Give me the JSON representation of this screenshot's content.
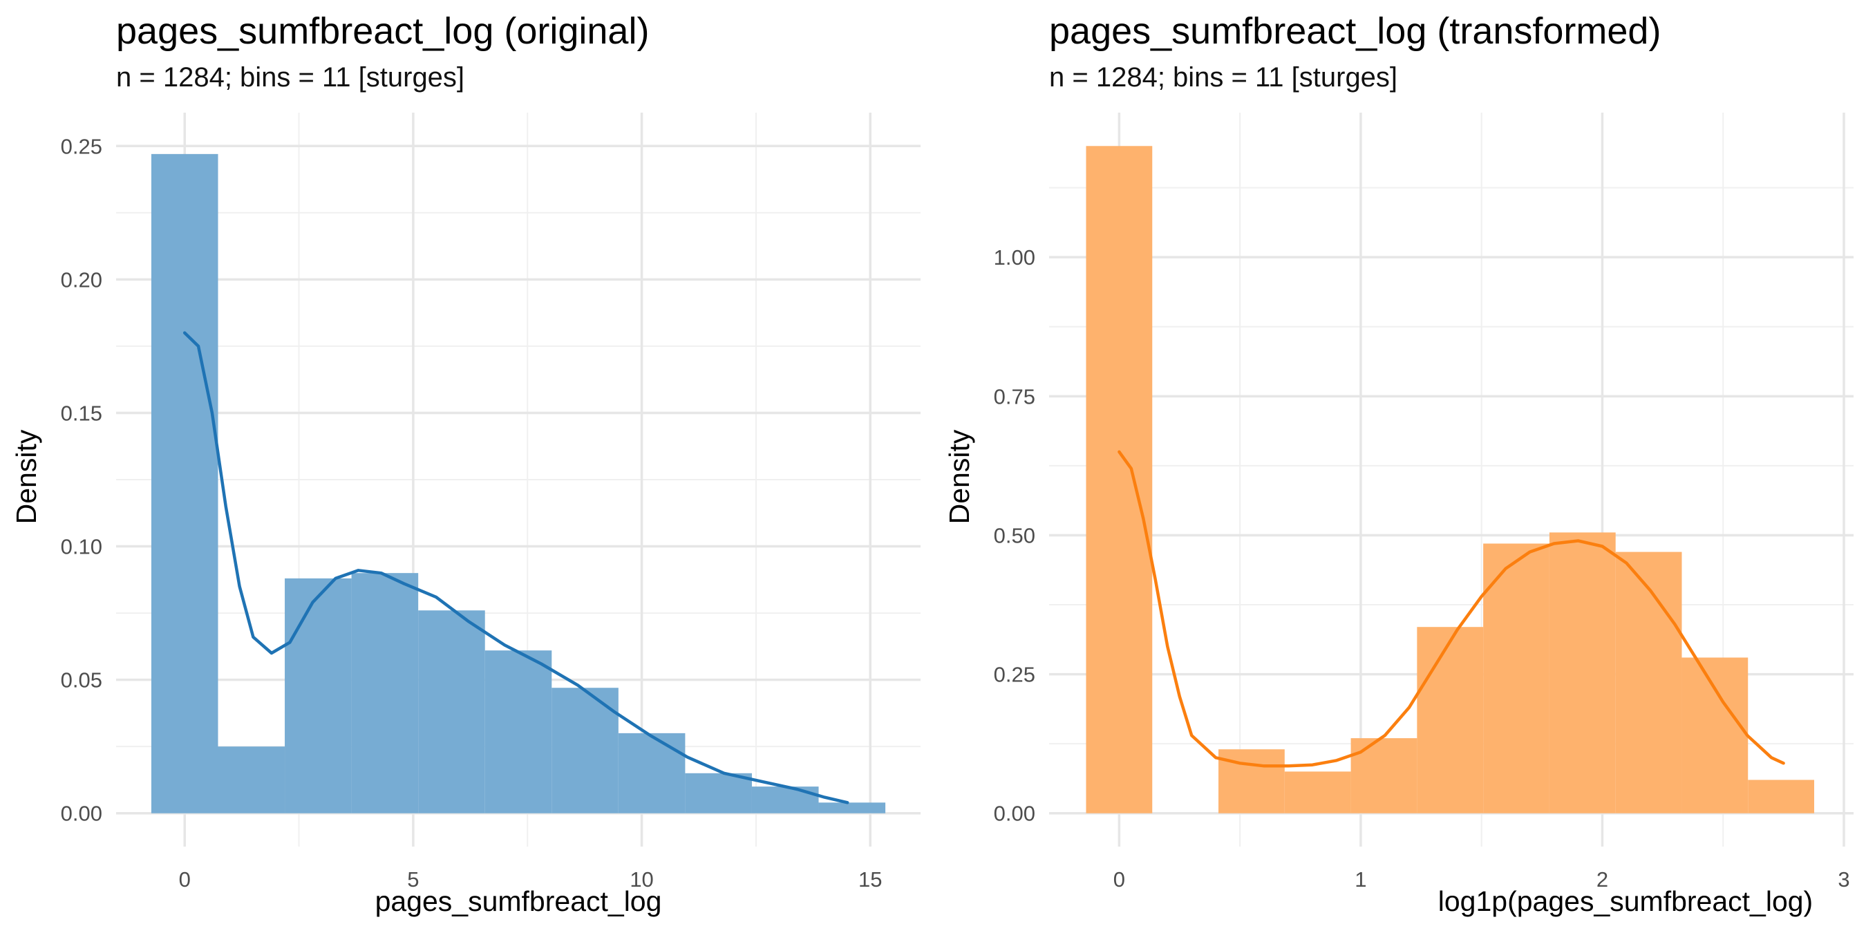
{
  "chart_data": [
    {
      "type": "bar",
      "title": "pages_sumfbreact_log (original)",
      "subtitle": "n = 1284; bins = 11 [sturges]",
      "xlabel": "pages_sumfbreact_log",
      "ylabel": "Density",
      "xlim": [
        -1.5,
        16.1
      ],
      "ylim": [
        -0.0125,
        0.2625
      ],
      "x_ticks": [
        0,
        5,
        10,
        15
      ],
      "x_tick_labels": [
        "0",
        "5",
        "10",
        "15"
      ],
      "y_ticks": [
        0,
        0.05,
        0.1,
        0.15,
        0.2,
        0.25
      ],
      "y_tick_labels": [
        "0.00",
        "0.05",
        "0.10",
        "0.15",
        "0.20",
        "0.25"
      ],
      "grid": true,
      "bar_color": "#77acd3",
      "line_color": "#1f73b4",
      "bins": [
        {
          "x0": -0.73,
          "x1": 0.73,
          "density": 0.247
        },
        {
          "x0": 0.73,
          "x1": 2.19,
          "density": 0.025
        },
        {
          "x0": 2.19,
          "x1": 3.65,
          "density": 0.088
        },
        {
          "x0": 3.65,
          "x1": 5.11,
          "density": 0.09
        },
        {
          "x0": 5.11,
          "x1": 6.57,
          "density": 0.076
        },
        {
          "x0": 6.57,
          "x1": 8.03,
          "density": 0.061
        },
        {
          "x0": 8.03,
          "x1": 9.49,
          "density": 0.047
        },
        {
          "x0": 9.49,
          "x1": 10.95,
          "density": 0.03
        },
        {
          "x0": 10.95,
          "x1": 12.41,
          "density": 0.015
        },
        {
          "x0": 12.41,
          "x1": 13.87,
          "density": 0.01
        },
        {
          "x0": 13.87,
          "x1": 15.33,
          "density": 0.004
        }
      ],
      "density_curve": {
        "x": [
          0,
          0.3,
          0.6,
          0.9,
          1.2,
          1.5,
          1.9,
          2.3,
          2.8,
          3.3,
          3.8,
          4.3,
          4.8,
          5.5,
          6.2,
          7.0,
          7.8,
          8.6,
          9.4,
          10.2,
          11.0,
          11.8,
          12.6,
          13.4,
          14.0,
          14.5
        ],
        "y": [
          0.18,
          0.175,
          0.15,
          0.115,
          0.085,
          0.066,
          0.06,
          0.064,
          0.079,
          0.088,
          0.091,
          0.09,
          0.086,
          0.081,
          0.072,
          0.063,
          0.056,
          0.048,
          0.038,
          0.029,
          0.021,
          0.015,
          0.012,
          0.009,
          0.006,
          0.004
        ]
      }
    },
    {
      "type": "bar",
      "title": "pages_sumfbreact_log (transformed)",
      "subtitle": "n = 1284; bins = 11 [sturges]",
      "xlabel": "log1p(pages_sumfbreact_log)",
      "ylabel": "Density",
      "xlim": [
        -0.29,
        3.04
      ],
      "ylim": [
        -0.06,
        1.26
      ],
      "x_ticks": [
        0,
        1,
        2,
        3
      ],
      "x_tick_labels": [
        "0",
        "1",
        "2",
        "3"
      ],
      "y_ticks": [
        0,
        0.25,
        0.5,
        0.75,
        1.0
      ],
      "y_tick_labels": [
        "0.00",
        "0.25",
        "0.50",
        "0.75",
        "1.00"
      ],
      "grid": true,
      "bar_color": "#feb26d",
      "line_color": "#fb7f0f",
      "bins": [
        {
          "x0": -0.137,
          "x1": 0.137,
          "density": 1.2
        },
        {
          "x0": 0.137,
          "x1": 0.411,
          "density": 0.0
        },
        {
          "x0": 0.411,
          "x1": 0.685,
          "density": 0.115
        },
        {
          "x0": 0.685,
          "x1": 0.959,
          "density": 0.075
        },
        {
          "x0": 0.959,
          "x1": 1.233,
          "density": 0.135
        },
        {
          "x0": 1.233,
          "x1": 1.507,
          "density": 0.335
        },
        {
          "x0": 1.507,
          "x1": 1.781,
          "density": 0.485
        },
        {
          "x0": 1.781,
          "x1": 2.055,
          "density": 0.505
        },
        {
          "x0": 2.055,
          "x1": 2.329,
          "density": 0.47
        },
        {
          "x0": 2.329,
          "x1": 2.603,
          "density": 0.28
        },
        {
          "x0": 2.603,
          "x1": 2.877,
          "density": 0.06
        }
      ],
      "density_curve": {
        "x": [
          0,
          0.05,
          0.1,
          0.15,
          0.2,
          0.25,
          0.3,
          0.4,
          0.5,
          0.6,
          0.7,
          0.8,
          0.9,
          1.0,
          1.1,
          1.2,
          1.3,
          1.4,
          1.5,
          1.6,
          1.7,
          1.8,
          1.9,
          2.0,
          2.1,
          2.2,
          2.3,
          2.4,
          2.5,
          2.6,
          2.7,
          2.75
        ],
        "y": [
          0.65,
          0.62,
          0.53,
          0.42,
          0.3,
          0.21,
          0.14,
          0.1,
          0.09,
          0.085,
          0.085,
          0.087,
          0.095,
          0.11,
          0.14,
          0.19,
          0.26,
          0.33,
          0.39,
          0.44,
          0.47,
          0.485,
          0.49,
          0.48,
          0.45,
          0.4,
          0.34,
          0.27,
          0.2,
          0.14,
          0.1,
          0.09
        ]
      }
    }
  ]
}
